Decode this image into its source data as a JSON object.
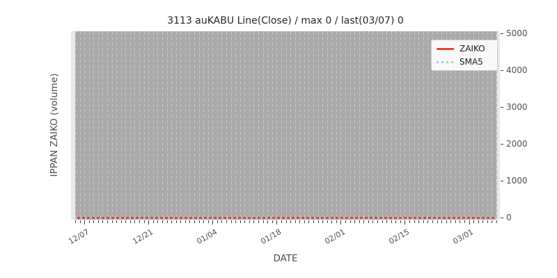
{
  "figure": {
    "background": "#ffffff"
  },
  "chart_data": {
    "type": "line",
    "title": "3113 auKABU Line(Close) / max 0 / last(03/07) 0",
    "xlabel": "DATE",
    "ylabel": "IPPAN ZAIKO (volume)",
    "stats": {
      "max": 0,
      "last_date": "03/07",
      "last_value": 0
    },
    "x_axis": {
      "start_date": "12/05",
      "end_date": "03/07",
      "num_days": 93,
      "major_tick_labels": [
        "12/07",
        "12/21",
        "01/04",
        "01/18",
        "02/01",
        "02/15",
        "03/01"
      ],
      "major_tick_day_indices": [
        2,
        16,
        30,
        44,
        58,
        72,
        86
      ],
      "minor_ticks": "one per day"
    },
    "y_axis": {
      "side": "right",
      "tick_labels": [
        "0",
        "1000",
        "2000",
        "3000",
        "4000",
        "5000"
      ],
      "tick_values": [
        0,
        1000,
        2000,
        3000,
        4000,
        5000
      ],
      "ylim": [
        0,
        5000
      ]
    },
    "series": [
      {
        "name": "ZAIKO",
        "style": "solid",
        "color": "#de4930",
        "values": {
          "constant": 0,
          "num_points": 93
        }
      },
      {
        "name": "SMA5",
        "style": "dotted",
        "color": "#a6cbe6",
        "values": {
          "constant": 0,
          "num_points": 93
        }
      }
    ],
    "legend": {
      "position": "upper right",
      "entries": [
        "ZAIKO",
        "SMA5"
      ]
    },
    "plot_style": {
      "axes_background": "#e7e7e7",
      "data_band_background": "#a9a9a9",
      "grid_color": "#c6c6c6",
      "grid": "vertical dashed line per day",
      "tick_color": "#3a3a3a",
      "label_color": "#4d4d4d",
      "title_color": "#262626"
    }
  }
}
